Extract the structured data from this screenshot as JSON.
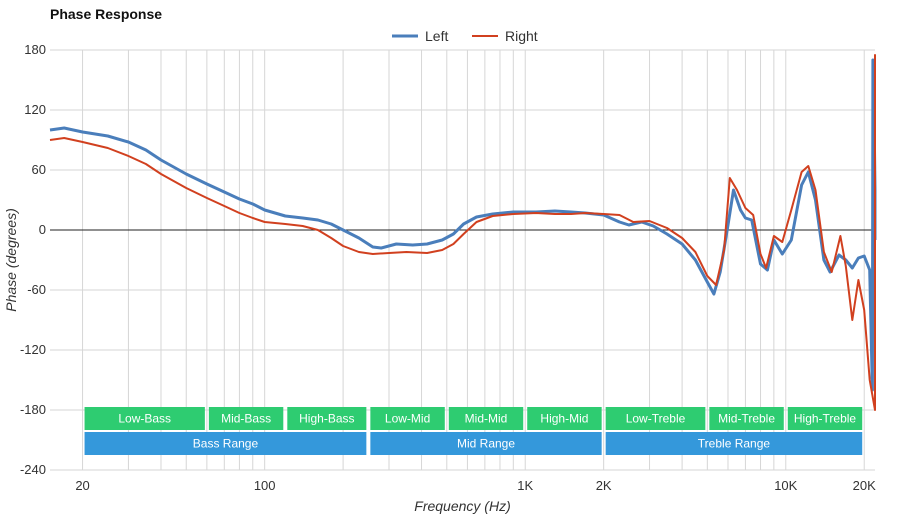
{
  "chart_data": {
    "type": "line",
    "title": "Phase Response",
    "xlabel": "Frequency (Hz)",
    "ylabel": "Phase (degrees)",
    "x_scale": "log",
    "xlim": [
      15,
      22000
    ],
    "ylim": [
      -240,
      180
    ],
    "y_ticks": [
      180,
      120,
      60,
      0,
      -60,
      -120,
      -180,
      -240
    ],
    "x_ticks": [
      {
        "value": 20,
        "label": "20"
      },
      {
        "value": 100,
        "label": "100"
      },
      {
        "value": 1000,
        "label": "1K"
      },
      {
        "value": 2000,
        "label": "2K"
      },
      {
        "value": 10000,
        "label": "10K"
      },
      {
        "value": 20000,
        "label": "20K"
      }
    ],
    "grid": true,
    "legend_position": "top-center",
    "series": [
      {
        "name": "Left",
        "color": "#4a7ebb",
        "points": [
          [
            15,
            100
          ],
          [
            17,
            102
          ],
          [
            20,
            98
          ],
          [
            25,
            94
          ],
          [
            30,
            88
          ],
          [
            35,
            80
          ],
          [
            40,
            70
          ],
          [
            50,
            56
          ],
          [
            60,
            46
          ],
          [
            70,
            38
          ],
          [
            80,
            31
          ],
          [
            90,
            26
          ],
          [
            100,
            20
          ],
          [
            120,
            14
          ],
          [
            140,
            12
          ],
          [
            160,
            10
          ],
          [
            180,
            6
          ],
          [
            200,
            0
          ],
          [
            230,
            -8
          ],
          [
            260,
            -17
          ],
          [
            280,
            -18
          ],
          [
            320,
            -14
          ],
          [
            370,
            -15
          ],
          [
            420,
            -14
          ],
          [
            480,
            -10
          ],
          [
            530,
            -4
          ],
          [
            580,
            6
          ],
          [
            650,
            13
          ],
          [
            750,
            16
          ],
          [
            900,
            18
          ],
          [
            1100,
            18
          ],
          [
            1300,
            19
          ],
          [
            1500,
            18
          ],
          [
            1700,
            17
          ],
          [
            2000,
            15
          ],
          [
            2300,
            8
          ],
          [
            2500,
            5
          ],
          [
            2800,
            8
          ],
          [
            3100,
            4
          ],
          [
            3500,
            -4
          ],
          [
            4000,
            -14
          ],
          [
            4500,
            -30
          ],
          [
            5000,
            -52
          ],
          [
            5300,
            -64
          ],
          [
            5600,
            -42
          ],
          [
            6000,
            5
          ],
          [
            6300,
            40
          ],
          [
            6700,
            20
          ],
          [
            7000,
            12
          ],
          [
            7400,
            10
          ],
          [
            8000,
            -34
          ],
          [
            8500,
            -40
          ],
          [
            9000,
            -10
          ],
          [
            9700,
            -24
          ],
          [
            10500,
            -10
          ],
          [
            11500,
            45
          ],
          [
            12200,
            58
          ],
          [
            13000,
            30
          ],
          [
            14000,
            -30
          ],
          [
            14800,
            -42
          ],
          [
            16000,
            -25
          ],
          [
            17000,
            -30
          ],
          [
            18000,
            -38
          ],
          [
            19000,
            -28
          ],
          [
            20000,
            -26
          ],
          [
            21000,
            -40
          ],
          [
            21500,
            -160
          ],
          [
            21600,
            170
          ],
          [
            21900,
            80
          ],
          [
            22200,
            40
          ],
          [
            22600,
            10
          ],
          [
            23000,
            -8
          ],
          [
            23600,
            10
          ],
          [
            24500,
            0
          ],
          [
            25500,
            -10
          ]
        ]
      },
      {
        "name": "Right",
        "color": "#d1401f",
        "points": [
          [
            15,
            90
          ],
          [
            17,
            92
          ],
          [
            20,
            88
          ],
          [
            25,
            82
          ],
          [
            30,
            74
          ],
          [
            35,
            66
          ],
          [
            40,
            56
          ],
          [
            50,
            42
          ],
          [
            60,
            32
          ],
          [
            70,
            24
          ],
          [
            80,
            17
          ],
          [
            90,
            12
          ],
          [
            100,
            8
          ],
          [
            120,
            6
          ],
          [
            140,
            4
          ],
          [
            160,
            0
          ],
          [
            180,
            -8
          ],
          [
            200,
            -16
          ],
          [
            230,
            -22
          ],
          [
            260,
            -24
          ],
          [
            300,
            -23
          ],
          [
            350,
            -22
          ],
          [
            420,
            -23
          ],
          [
            480,
            -20
          ],
          [
            530,
            -14
          ],
          [
            580,
            -4
          ],
          [
            650,
            8
          ],
          [
            750,
            14
          ],
          [
            900,
            16
          ],
          [
            1100,
            17
          ],
          [
            1300,
            16
          ],
          [
            1500,
            16
          ],
          [
            1700,
            17
          ],
          [
            2000,
            16
          ],
          [
            2300,
            15
          ],
          [
            2600,
            8
          ],
          [
            3000,
            9
          ],
          [
            3500,
            2
          ],
          [
            4000,
            -8
          ],
          [
            4500,
            -22
          ],
          [
            5000,
            -46
          ],
          [
            5400,
            -55
          ],
          [
            5800,
            -20
          ],
          [
            6100,
            52
          ],
          [
            6500,
            40
          ],
          [
            7000,
            22
          ],
          [
            7500,
            15
          ],
          [
            8000,
            -24
          ],
          [
            8400,
            -38
          ],
          [
            9000,
            -6
          ],
          [
            9700,
            -12
          ],
          [
            10500,
            20
          ],
          [
            11500,
            58
          ],
          [
            12200,
            64
          ],
          [
            13000,
            40
          ],
          [
            14000,
            -22
          ],
          [
            15000,
            -42
          ],
          [
            16200,
            -6
          ],
          [
            17000,
            -36
          ],
          [
            18000,
            -90
          ],
          [
            19000,
            -50
          ],
          [
            20000,
            -80
          ],
          [
            21000,
            -150
          ],
          [
            22000,
            -180
          ],
          [
            22500,
            175
          ],
          [
            23000,
            120
          ],
          [
            23600,
            60
          ],
          [
            24500,
            42
          ],
          [
            25000,
            40
          ],
          [
            25600,
            20
          ]
        ]
      }
    ],
    "bands_row1": [
      {
        "label": "Low-Bass",
        "from": 20,
        "to": 60
      },
      {
        "label": "Mid-Bass",
        "from": 60,
        "to": 120
      },
      {
        "label": "High-Bass",
        "from": 120,
        "to": 250
      },
      {
        "label": "Low-Mid",
        "from": 250,
        "to": 500
      },
      {
        "label": "Mid-Mid",
        "from": 500,
        "to": 1000
      },
      {
        "label": "High-Mid",
        "from": 1000,
        "to": 2000
      },
      {
        "label": "Low-Treble",
        "from": 2000,
        "to": 5000
      },
      {
        "label": "Mid-Treble",
        "from": 5000,
        "to": 10000
      },
      {
        "label": "High-Treble",
        "from": 10000,
        "to": 20000
      }
    ],
    "bands_row2": [
      {
        "label": "Bass Range",
        "from": 20,
        "to": 250
      },
      {
        "label": "Mid Range",
        "from": 250,
        "to": 2000
      },
      {
        "label": "Treble Range",
        "from": 2000,
        "to": 20000
      }
    ],
    "band_colors": {
      "row1": "#2ecc71",
      "row2": "#3498db"
    }
  }
}
